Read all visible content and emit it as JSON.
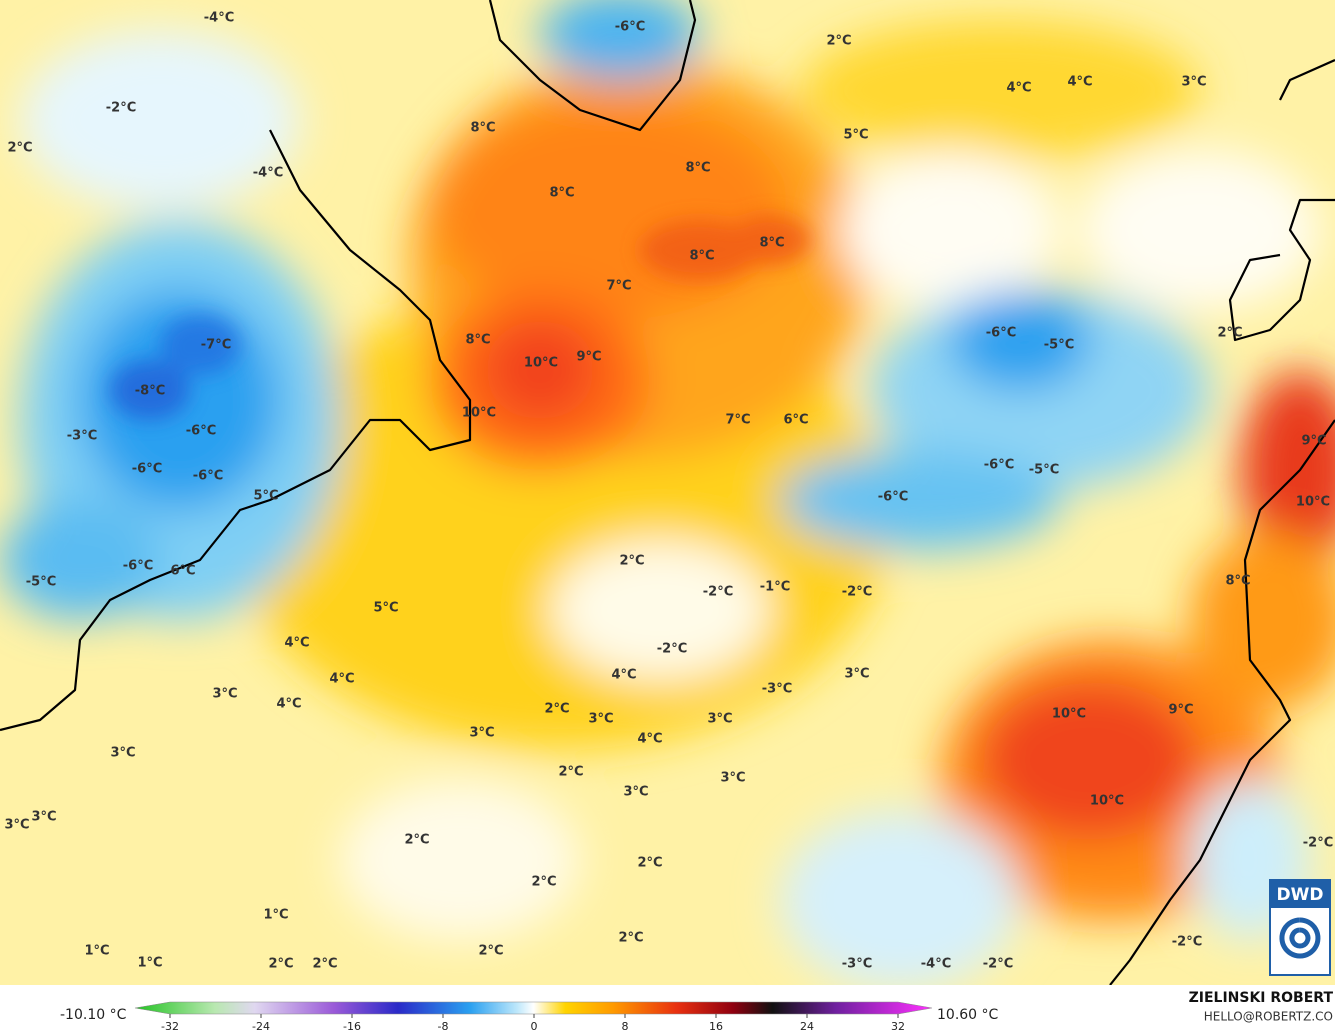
{
  "map": {
    "temperature_labels": [
      "-4°C",
      "-6°C",
      "2°C",
      "-2°C",
      "8°C",
      "4°C",
      "4°C",
      "3°C",
      "2°C",
      "5°C",
      "-4°C",
      "8°C",
      "8°C",
      "8°C",
      "8°C",
      "7°C",
      "-6°C",
      "-5°C",
      "-7°C",
      "8°C",
      "10°C",
      "9°C",
      "-8°C",
      "10°C",
      "7°C",
      "6°C",
      "-3°C",
      "-6°C",
      "-6°C",
      "-6°C",
      "-6°C",
      "-5°C",
      "-6°C",
      "5°C",
      "2°C",
      "-6°C",
      "6°C",
      "-5°C",
      "-2°C",
      "-1°C",
      "-2°C",
      "5°C",
      "4°C",
      "-2°C",
      "4°C",
      "4°C",
      "-3°C",
      "3°C",
      "3°C",
      "4°C",
      "2°C",
      "3°C",
      "3°C",
      "3°C",
      "4°C",
      "10°C",
      "9°C",
      "3°C",
      "2°C",
      "3°C",
      "3°C",
      "10°C",
      "3°C",
      "3°C",
      "2°C",
      "2°C",
      "2°C",
      "1°C",
      "2°C",
      "2°C",
      "1°C",
      "1°C",
      "2°C",
      "2°C",
      "-3°C",
      "-4°C",
      "-2°C",
      "9°C",
      "10°C",
      "8°C",
      "-2°C",
      "-2°C",
      "2°C"
    ],
    "colorbar": {
      "lim": [
        -32,
        32
      ],
      "ticks": [
        -32,
        -24,
        -16,
        -8,
        0,
        8,
        16,
        24,
        32
      ],
      "min_label": "-10.10 °C",
      "max_label": "10.60 °C"
    },
    "credit": {
      "name": "ZIELINSKI ROBERT",
      "contact": "HELLO@ROBERTZ.CO"
    },
    "logo_text": "DWD"
  }
}
